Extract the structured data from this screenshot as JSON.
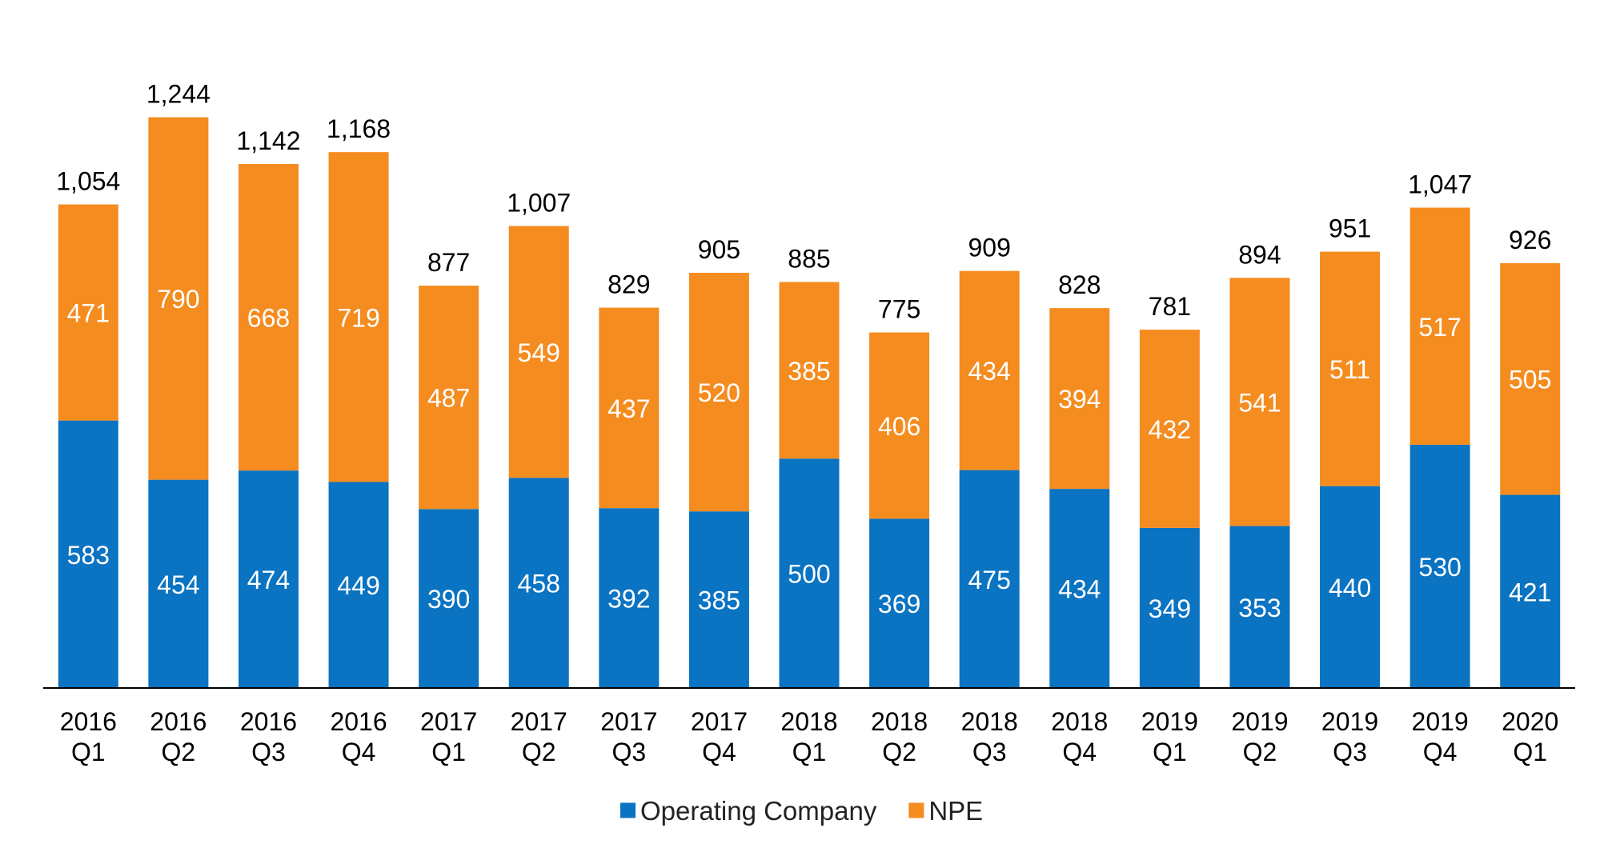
{
  "chart_data": {
    "type": "bar",
    "stacked": true,
    "categories": [
      [
        "2016",
        "Q1"
      ],
      [
        "2016",
        "Q2"
      ],
      [
        "2016",
        "Q3"
      ],
      [
        "2016",
        "Q4"
      ],
      [
        "2017",
        "Q1"
      ],
      [
        "2017",
        "Q2"
      ],
      [
        "2017",
        "Q3"
      ],
      [
        "2017",
        "Q4"
      ],
      [
        "2018",
        "Q1"
      ],
      [
        "2018",
        "Q2"
      ],
      [
        "2018",
        "Q3"
      ],
      [
        "2018",
        "Q4"
      ],
      [
        "2019",
        "Q1"
      ],
      [
        "2019",
        "Q2"
      ],
      [
        "2019",
        "Q3"
      ],
      [
        "2019",
        "Q4"
      ],
      [
        "2020",
        "Q1"
      ]
    ],
    "series": [
      {
        "name": "Operating Company",
        "color": "#0a73c2",
        "values": [
          583,
          454,
          474,
          449,
          390,
          458,
          392,
          385,
          500,
          369,
          475,
          434,
          349,
          353,
          440,
          530,
          421
        ]
      },
      {
        "name": "NPE",
        "color": "#f48c20",
        "values": [
          471,
          790,
          668,
          719,
          487,
          549,
          437,
          520,
          385,
          406,
          434,
          394,
          432,
          541,
          511,
          517,
          505
        ]
      }
    ],
    "totals": [
      "1,054",
      "1,244",
      "1,142",
      "1,168",
      "877",
      "1,007",
      "829",
      "905",
      "885",
      "775",
      "909",
      "828",
      "781",
      "894",
      "951",
      "1,047",
      "926"
    ],
    "title": "",
    "xlabel": "",
    "ylabel": "",
    "ylim": [
      0,
      1300
    ],
    "grid": false,
    "legend_position": "bottom-center"
  }
}
